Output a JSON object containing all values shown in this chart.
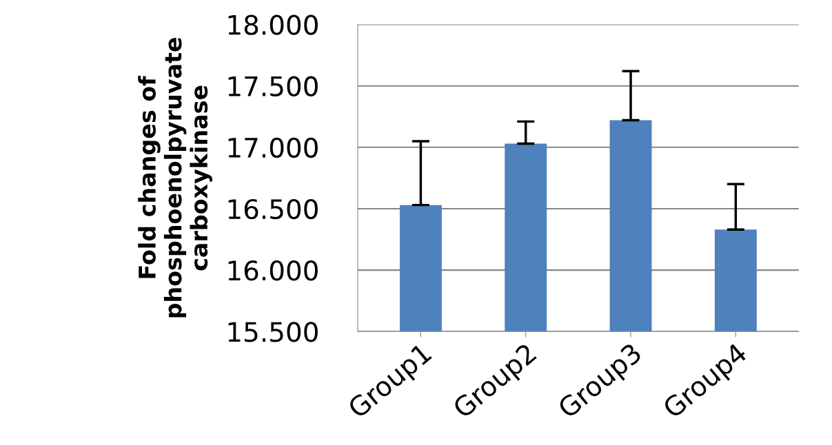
{
  "chart_data": {
    "type": "bar",
    "ylabel": "Fold changes of\nphosphoenolpyruvate\ncarboxykinase",
    "categories": [
      "Group1",
      "Group2",
      "Group3",
      "Group4"
    ],
    "values": [
      16.53,
      17.03,
      17.22,
      16.33
    ],
    "errors": [
      [
        16.53,
        17.05
      ],
      [
        17.03,
        17.21
      ],
      [
        17.22,
        17.62
      ],
      [
        16.33,
        16.7
      ]
    ],
    "color": "#4f81bd",
    "ylim": [
      15.5,
      18.0
    ],
    "yticks": [
      {
        "value": 15.5,
        "label": "15.500"
      },
      {
        "value": 16.0,
        "label": "16.000"
      },
      {
        "value": 16.5,
        "label": "16.500"
      },
      {
        "value": 17.0,
        "label": "17.000"
      },
      {
        "value": 17.5,
        "label": "17.500"
      },
      {
        "value": 18.0,
        "label": "18.000"
      }
    ],
    "grid": "y"
  }
}
